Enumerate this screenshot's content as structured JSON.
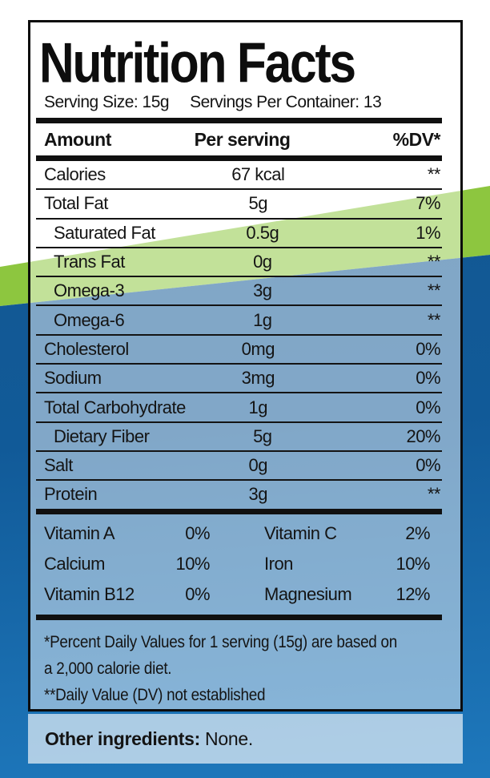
{
  "title": "Nutrition Facts",
  "serving": {
    "size": "Serving Size: 15g",
    "per_container": "Servings Per Container: 13"
  },
  "header": {
    "amount": "Amount",
    "per_serving": "Per serving",
    "dv": "%DV*"
  },
  "rows": [
    {
      "name": "Calories",
      "value": "67 kcal",
      "dv": "**",
      "indent": false
    },
    {
      "name": "Total Fat",
      "value": "5g",
      "dv": "7%",
      "indent": false
    },
    {
      "name": "Saturated Fat",
      "value": "0.5g",
      "dv": "1%",
      "indent": true
    },
    {
      "name": "Trans Fat",
      "value": "0g",
      "dv": "**",
      "indent": true
    },
    {
      "name": "Omega-3",
      "value": "3g",
      "dv": "**",
      "indent": true
    },
    {
      "name": "Omega-6",
      "value": "1g",
      "dv": "**",
      "indent": true
    },
    {
      "name": "Cholesterol",
      "value": "0mg",
      "dv": "0%",
      "indent": false
    },
    {
      "name": "Sodium",
      "value": "3mg",
      "dv": "0%",
      "indent": false
    },
    {
      "name": "Total Carbohydrate",
      "value": "1g",
      "dv": "0%",
      "indent": false
    },
    {
      "name": "Dietary Fiber",
      "value": "5g",
      "dv": "20%",
      "indent": true
    },
    {
      "name": "Salt",
      "value": "0g",
      "dv": "0%",
      "indent": false
    },
    {
      "name": "Protein",
      "value": "3g",
      "dv": "**",
      "indent": false
    }
  ],
  "micronutrients": [
    {
      "name": "Vitamin A",
      "dv": "0%"
    },
    {
      "name": "Vitamin C",
      "dv": "2%"
    },
    {
      "name": "Calcium",
      "dv": "10%"
    },
    {
      "name": "Iron",
      "dv": "10%"
    },
    {
      "name": "Vitamin B12",
      "dv": "0%"
    },
    {
      "name": "Magnesium",
      "dv": "12%"
    }
  ],
  "footnote_lines": [
    "*Percent Daily Values for 1 serving (15g) are based on",
    "a 2,000 calorie diet.",
    "**Daily Value (DV) not established"
  ],
  "other_ingredients": {
    "label": "Other ingredients:",
    "value": " None."
  },
  "colors": {
    "green": "#8dc63f",
    "blue_dark": "#14568e",
    "blue_bottom": "#1e78bc",
    "ink": "#141414"
  }
}
